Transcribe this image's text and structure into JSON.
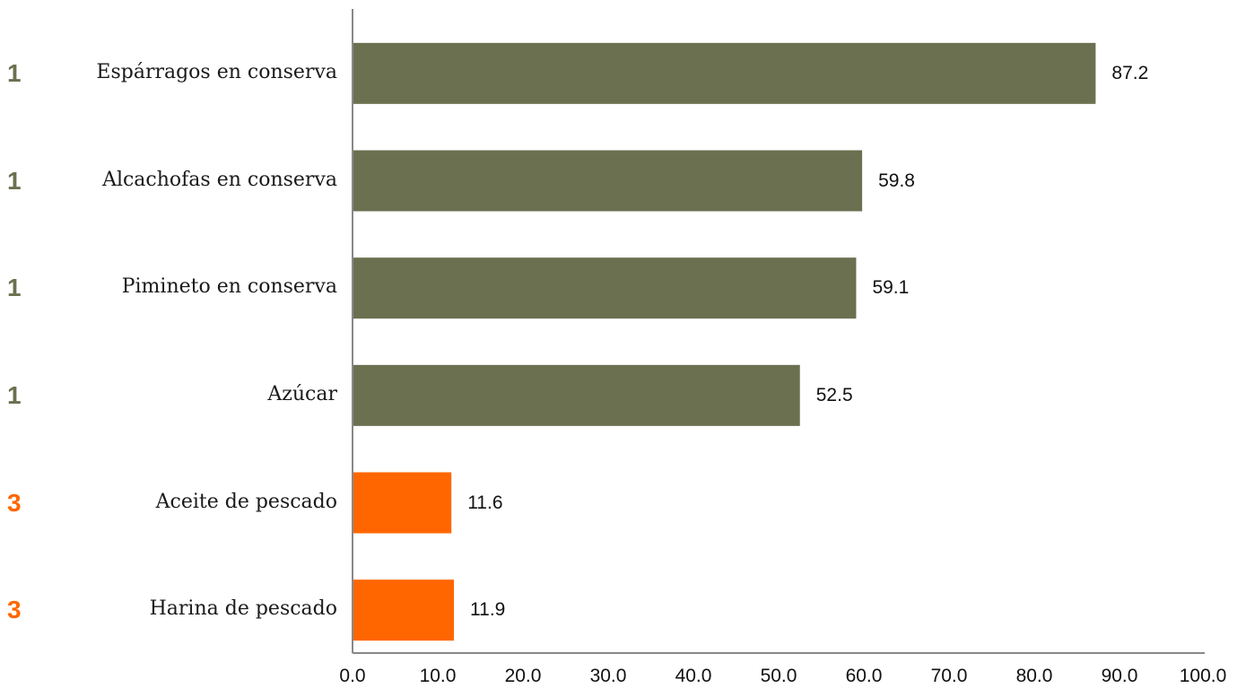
{
  "chart_data": {
    "type": "bar",
    "orientation": "horizontal",
    "categories": [
      "Espárragos en conserva",
      "Alcachofas en conserva",
      "Pimineto en conserva",
      "Azúcar",
      "Aceite de pescado",
      "Harina de pescado"
    ],
    "ranks": [
      "1",
      "1",
      "1",
      "1",
      "3",
      "3"
    ],
    "values": [
      87.2,
      59.8,
      59.1,
      52.5,
      11.6,
      11.9
    ],
    "value_labels": [
      "87.2",
      "59.8",
      "59.1",
      "52.5",
      "11.6",
      "11.9"
    ],
    "xlim": [
      0,
      100
    ],
    "xticks": [
      "0.0",
      "10.0",
      "20.0",
      "30.0",
      "40.0",
      "50.0",
      "60.0",
      "70.0",
      "80.0",
      "90.0",
      "100.0"
    ],
    "grid": false,
    "colors": {
      "rank_1": "#6b7050",
      "rank_3": "#ff6600",
      "axis": "#888888"
    }
  }
}
